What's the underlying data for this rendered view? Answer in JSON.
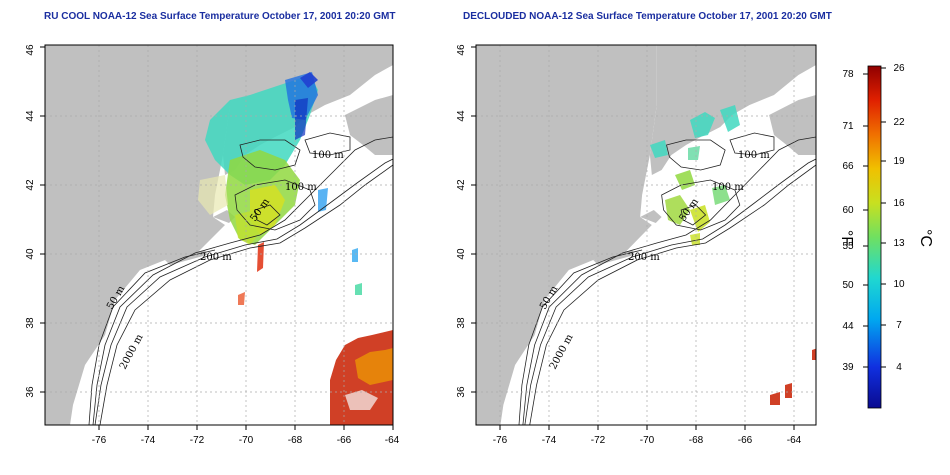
{
  "maps": [
    {
      "title": "RU COOL NOAA-12 Sea Surface Temperature October 17, 2001 20:20 GMT",
      "lon_ticks": [
        "-76",
        "-74",
        "-72",
        "-70",
        "-68",
        "-66",
        "-64"
      ],
      "lat_ticks": [
        "36",
        "38",
        "40",
        "42",
        "44",
        "46"
      ],
      "contour_labels": [
        "100 m",
        "100 m",
        "50 m",
        "200 m",
        "50 m",
        "2000 m"
      ]
    },
    {
      "title": "DECLOUDED NOAA-12 Sea Surface Temperature October 17, 2001 20:20 GMT",
      "lon_ticks": [
        "-76",
        "-74",
        "-72",
        "-70",
        "-68",
        "-66",
        "-64"
      ],
      "lat_ticks": [
        "36",
        "38",
        "40",
        "42",
        "44",
        "46"
      ],
      "contour_labels": [
        "100 m",
        "100 m",
        "50 m",
        "200 m",
        "50 m",
        "2000 m"
      ]
    }
  ],
  "colorbar": {
    "fahrenheit_ticks": [
      "78",
      "71",
      "66",
      "60",
      "55",
      "50",
      "44",
      "39"
    ],
    "celsius_ticks": [
      "26",
      "22",
      "19",
      "16",
      "13",
      "10",
      "7",
      "4"
    ],
    "fahrenheit_unit": "°F",
    "celsius_unit": "°C"
  },
  "colors": {
    "land": "#c0c0c0",
    "title": "#1a2ea0",
    "grid": "#aaaaaa"
  }
}
